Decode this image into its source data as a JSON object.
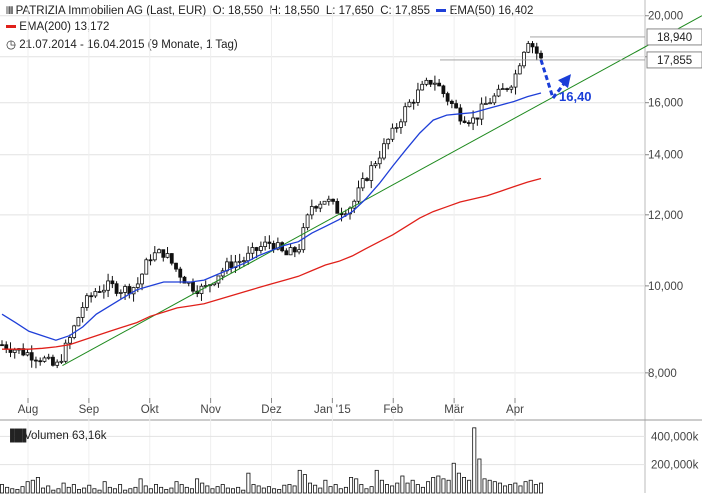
{
  "header": {
    "instrument": "PATRIZIA Immobilien AG (Last, EUR)",
    "open": "O: 18,550",
    "high": "H: 18,550",
    "low": "L: 17,650",
    "close": "C: 17,855",
    "ema50_label": "EMA(50)",
    "ema50_value": "16,402",
    "ema200_label": "EMA(200)",
    "ema200_value": "13,172",
    "period": "21.07.2014 - 16.04.2015 (9 Monate, 1 Tag)"
  },
  "colors": {
    "ema50": "#1f3fd8",
    "ema200": "#e0201a",
    "trend": "#1e8a1e",
    "candle": "#111111",
    "target": "#1a3ed8"
  },
  "chart_data": [
    {
      "type": "line",
      "scale": "log",
      "x_ticks": [
        "Aug",
        "Sep",
        "Okt",
        "Nov",
        "Dez",
        "Jan '15",
        "Feb",
        "Mär",
        "Apr"
      ],
      "y_ticks": [
        "20,000",
        "18,000",
        "16,000",
        "14,000",
        "12,000",
        "10,000",
        "8,000"
      ],
      "ylim": [
        7.5,
        20.4
      ],
      "price_labels": [
        "18,940",
        "17,855"
      ],
      "target_label": "16,40",
      "series": [
        {
          "name": "PATRIZIA Immobilien AG",
          "values": [
            8.6,
            8.5,
            8.4,
            8.3,
            8.1,
            8.7,
            9.5,
            9.9,
            10.0,
            9.9,
            10.0,
            10.8,
            10.9,
            10.4,
            10.0,
            9.9,
            10.3,
            10.6,
            10.7,
            11.0,
            11.2,
            10.8,
            11.0,
            12.3,
            12.5,
            12.1,
            12.3,
            13.2,
            14.0,
            14.8,
            15.8,
            16.5,
            17.0,
            16.2,
            15.5,
            15.3,
            16.0,
            16.4,
            17.0,
            18.9,
            17.855
          ]
        },
        {
          "name": "EMA(50)",
          "values": [
            9.3,
            9.1,
            8.9,
            8.8,
            8.7,
            8.8,
            9.0,
            9.3,
            9.5,
            9.7,
            9.9,
            10.0,
            10.1,
            10.1,
            10.1,
            10.15,
            10.3,
            10.45,
            10.6,
            10.8,
            10.95,
            11.1,
            11.2,
            11.45,
            11.65,
            11.85,
            12.1,
            12.5,
            13.0,
            13.6,
            14.2,
            14.8,
            15.3,
            15.5,
            15.55,
            15.6,
            15.75,
            15.9,
            16.05,
            16.25,
            16.402
          ]
        },
        {
          "name": "EMA(200)",
          "values": [
            8.5,
            8.5,
            8.5,
            8.52,
            8.55,
            8.6,
            8.7,
            8.8,
            8.9,
            9.0,
            9.1,
            9.25,
            9.35,
            9.45,
            9.5,
            9.55,
            9.65,
            9.75,
            9.85,
            9.95,
            10.05,
            10.15,
            10.25,
            10.4,
            10.55,
            10.65,
            10.8,
            11.0,
            11.2,
            11.4,
            11.65,
            11.9,
            12.1,
            12.25,
            12.4,
            12.5,
            12.6,
            12.75,
            12.9,
            13.05,
            13.172
          ]
        }
      ]
    },
    {
      "type": "bar",
      "title": "Volumen",
      "value_label": "63,16k",
      "y_ticks": [
        "400,000k",
        "200,000k"
      ],
      "ylim": [
        0,
        480
      ],
      "values": [
        60,
        40,
        30,
        25,
        45,
        80,
        90,
        110,
        35,
        50,
        20,
        30,
        70,
        40,
        60,
        25,
        35,
        55,
        30,
        20,
        80,
        40,
        30,
        60,
        20,
        30,
        40,
        100,
        50,
        30,
        60,
        40,
        25,
        35,
        80,
        60,
        40,
        30,
        100,
        70,
        50,
        30,
        45,
        60,
        35,
        30,
        40,
        20,
        140,
        60,
        50,
        35,
        45,
        30,
        25,
        55,
        60,
        50,
        160,
        130,
        70,
        55,
        35,
        90,
        45,
        60,
        30,
        40,
        110,
        100,
        60,
        30,
        45,
        160,
        90,
        60,
        50,
        70,
        120,
        70,
        90,
        60,
        40,
        80,
        110,
        120,
        100,
        90,
        210,
        140,
        110,
        90,
        460,
        240,
        100,
        90,
        80,
        70,
        50,
        60,
        70,
        50,
        80,
        90,
        60,
        70
      ]
    }
  ]
}
